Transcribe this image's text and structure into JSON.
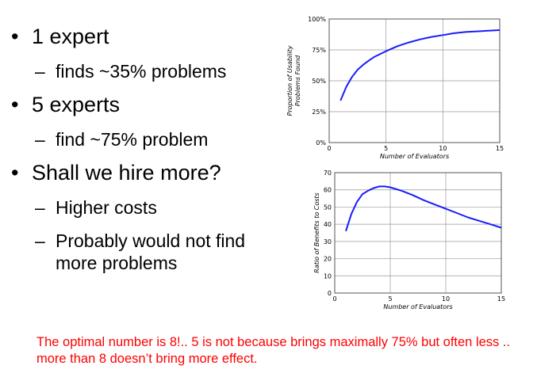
{
  "slide": {
    "bullets": [
      {
        "text": "1 expert",
        "sub": [
          "finds ~35% problems"
        ]
      },
      {
        "text": "5 experts",
        "sub": [
          "find ~75% problem"
        ]
      },
      {
        "text": "Shall we hire more?",
        "sub": [
          "Higher costs",
          "Probably would not find more problems"
        ]
      }
    ],
    "note": "The optimal number is 8!.. 5 is not because brings maximally 75% but often less .. more than 8 doesn’t bring more effect.",
    "bullet_glyph": "•",
    "dash_glyph": "–"
  },
  "chart_data": [
    {
      "type": "line",
      "xlabel": "Number of Evaluators",
      "ylabel": [
        "Proportion of Usability",
        "Problems Found"
      ],
      "xlim": [
        0,
        15
      ],
      "ylim": [
        0,
        100
      ],
      "xticks": [
        0,
        5,
        10,
        15
      ],
      "yticks": [
        0,
        25,
        50,
        75,
        100
      ],
      "ytick_labels": [
        "0%",
        "25%",
        "50%",
        "75%",
        "100%"
      ],
      "grid": true,
      "color": "#1a1aff",
      "series": [
        {
          "x": [
            1,
            1.5,
            2,
            2.5,
            3,
            3.5,
            4,
            5,
            6,
            7,
            8,
            9,
            10,
            11,
            12,
            13,
            14,
            15
          ],
          "y": [
            34,
            45,
            53,
            59,
            63,
            66.5,
            69.5,
            74,
            78,
            81,
            83.5,
            85.5,
            87,
            88.5,
            89.5,
            90,
            90.5,
            91
          ]
        }
      ]
    },
    {
      "type": "line",
      "xlabel": "Number of Evaluators",
      "ylabel": "Ratio of Benefits to Costs",
      "xlim": [
        0,
        15
      ],
      "ylim": [
        0,
        70
      ],
      "xticks": [
        0,
        5,
        10,
        15
      ],
      "yticks": [
        0,
        10,
        20,
        30,
        40,
        50,
        60,
        70
      ],
      "grid": true,
      "color": "#1a1aff",
      "series": [
        {
          "x": [
            1,
            1.5,
            2,
            2.5,
            3,
            3.5,
            4,
            4.5,
            5,
            6,
            7,
            8,
            9,
            10,
            11,
            12,
            13,
            14,
            15
          ],
          "y": [
            36,
            46,
            53,
            57.5,
            59.5,
            61,
            62,
            62,
            61.5,
            59.5,
            57,
            54,
            51.5,
            49,
            46.5,
            44,
            42,
            40,
            38
          ]
        }
      ]
    }
  ]
}
